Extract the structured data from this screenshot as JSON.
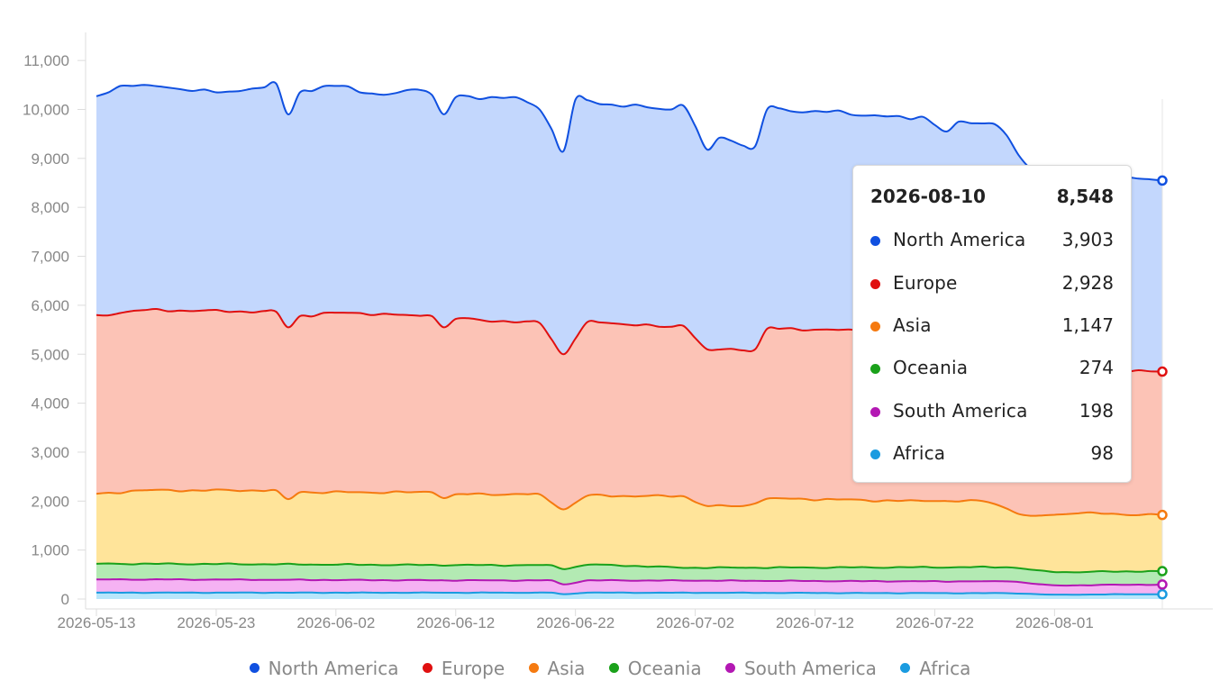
{
  "chart_data": {
    "type": "area",
    "stacked": true,
    "title": "",
    "xlabel": "",
    "ylabel": "",
    "ylim": [
      0,
      11500
    ],
    "y_ticks": [
      0,
      1000,
      2000,
      3000,
      4000,
      5000,
      6000,
      7000,
      8000,
      9000,
      10000,
      11000
    ],
    "y_tick_labels": [
      "0",
      "1,000",
      "2,000",
      "3,000",
      "4,000",
      "5,000",
      "6,000",
      "7,000",
      "8,000",
      "9,000",
      "10,000",
      "11,000"
    ],
    "x_tick_labels": [
      "2026-05-13",
      "2026-05-23",
      "2026-06-02",
      "2026-06-12",
      "2026-06-22",
      "2026-07-02",
      "2026-07-12",
      "2026-07-22",
      "2026-08-01"
    ],
    "x_start": "2026-05-13",
    "x_end": "2026-08-10",
    "legend_position": "bottom",
    "grid": false,
    "stack_series": [
      {
        "name": "Africa",
        "color": "#1a9be0",
        "fill": "#b8e6fb",
        "keypoints": [
          [
            "2026-05-13",
            130
          ],
          [
            "2026-06-20",
            130
          ],
          [
            "2026-06-21",
            100
          ],
          [
            "2026-06-23",
            130
          ],
          [
            "2026-07-28",
            120
          ],
          [
            "2026-08-01",
            90
          ],
          [
            "2026-08-10",
            98
          ]
        ]
      },
      {
        "name": "South America",
        "color": "#b318b3",
        "fill": "#f5b2f3",
        "keypoints": [
          [
            "2026-05-13",
            400
          ],
          [
            "2026-06-20",
            380
          ],
          [
            "2026-06-21",
            300
          ],
          [
            "2026-06-23",
            380
          ],
          [
            "2026-07-28",
            360
          ],
          [
            "2026-08-01",
            280
          ],
          [
            "2026-08-10",
            296
          ]
        ]
      },
      {
        "name": "Oceania",
        "color": "#1aa11a",
        "fill": "#b3eab3",
        "keypoints": [
          [
            "2026-05-13",
            720
          ],
          [
            "2026-06-20",
            690
          ],
          [
            "2026-06-21",
            610
          ],
          [
            "2026-06-23",
            700
          ],
          [
            "2026-07-02",
            640
          ],
          [
            "2026-07-28",
            650
          ],
          [
            "2026-08-01",
            550
          ],
          [
            "2026-08-10",
            570
          ]
        ]
      },
      {
        "name": "Asia",
        "color": "#f57a10",
        "fill": "#ffe49a",
        "keypoints": [
          [
            "2026-05-13",
            2150
          ],
          [
            "2026-05-17",
            2220
          ],
          [
            "2026-05-28",
            2220
          ],
          [
            "2026-05-29",
            2040
          ],
          [
            "2026-05-30",
            2180
          ],
          [
            "2026-06-10",
            2180
          ],
          [
            "2026-06-11",
            2060
          ],
          [
            "2026-06-12",
            2140
          ],
          [
            "2026-06-19",
            2140
          ],
          [
            "2026-06-21",
            1830
          ],
          [
            "2026-06-23",
            2110
          ],
          [
            "2026-07-01",
            2100
          ],
          [
            "2026-07-03",
            1900
          ],
          [
            "2026-07-06",
            1900
          ],
          [
            "2026-07-08",
            2050
          ],
          [
            "2026-07-22",
            2000
          ],
          [
            "2026-07-26",
            2000
          ],
          [
            "2026-07-30",
            1700
          ],
          [
            "2026-08-03",
            1750
          ],
          [
            "2026-08-10",
            1717
          ]
        ]
      },
      {
        "name": "Europe",
        "color": "#e01010",
        "fill": "#fcc3b6",
        "keypoints": [
          [
            "2026-05-13",
            5800
          ],
          [
            "2026-05-17",
            5900
          ],
          [
            "2026-05-28",
            5870
          ],
          [
            "2026-05-29",
            5550
          ],
          [
            "2026-05-30",
            5780
          ],
          [
            "2026-06-02",
            5850
          ],
          [
            "2026-06-10",
            5780
          ],
          [
            "2026-06-11",
            5550
          ],
          [
            "2026-06-12",
            5720
          ],
          [
            "2026-06-19",
            5640
          ],
          [
            "2026-06-21",
            5000
          ],
          [
            "2026-06-23",
            5660
          ],
          [
            "2026-06-30",
            5560
          ],
          [
            "2026-07-01",
            5580
          ],
          [
            "2026-07-03",
            5100
          ],
          [
            "2026-07-07",
            5100
          ],
          [
            "2026-07-08",
            5520
          ],
          [
            "2026-07-22",
            5450
          ],
          [
            "2026-07-26",
            5100
          ],
          [
            "2026-07-30",
            4800
          ],
          [
            "2026-08-03",
            4700
          ],
          [
            "2026-08-10",
            4645
          ]
        ]
      },
      {
        "name": "North America",
        "color": "#1050e0",
        "fill": "#c3d7fd",
        "keypoints": [
          [
            "2026-05-13",
            10270
          ],
          [
            "2026-05-15",
            10480
          ],
          [
            "2026-05-17",
            10500
          ],
          [
            "2026-05-23",
            10350
          ],
          [
            "2026-05-27",
            10450
          ],
          [
            "2026-05-28",
            10530
          ],
          [
            "2026-05-29",
            9900
          ],
          [
            "2026-05-30",
            10350
          ],
          [
            "2026-06-02",
            10480
          ],
          [
            "2026-06-06",
            10300
          ],
          [
            "2026-06-09",
            10400
          ],
          [
            "2026-06-10",
            10300
          ],
          [
            "2026-06-11",
            9900
          ],
          [
            "2026-06-12",
            10250
          ],
          [
            "2026-06-17",
            10250
          ],
          [
            "2026-06-19",
            10000
          ],
          [
            "2026-06-20",
            9600
          ],
          [
            "2026-06-21",
            9150
          ],
          [
            "2026-06-22",
            10200
          ],
          [
            "2026-06-25",
            10100
          ],
          [
            "2026-06-30",
            10000
          ],
          [
            "2026-07-01",
            10080
          ],
          [
            "2026-07-03",
            9180
          ],
          [
            "2026-07-04",
            9420
          ],
          [
            "2026-07-07",
            9250
          ],
          [
            "2026-07-08",
            10000
          ],
          [
            "2026-07-13",
            9950
          ],
          [
            "2026-07-17",
            9880
          ],
          [
            "2026-07-20",
            9800
          ],
          [
            "2026-07-21",
            9850
          ],
          [
            "2026-07-23",
            9550
          ],
          [
            "2026-07-24",
            9750
          ],
          [
            "2026-07-27",
            9700
          ],
          [
            "2026-07-30",
            8800
          ],
          [
            "2026-08-03",
            8700
          ],
          [
            "2026-08-10",
            8548
          ]
        ]
      }
    ],
    "tooltip": {
      "date": "2026-08-10",
      "total": "8,548",
      "rows": [
        {
          "name": "North America",
          "value": "3,903",
          "color": "#1050e0"
        },
        {
          "name": "Europe",
          "value": "2,928",
          "color": "#e01010"
        },
        {
          "name": "Asia",
          "value": "1,147",
          "color": "#f57a10"
        },
        {
          "name": "Oceania",
          "value": "274",
          "color": "#1aa11a"
        },
        {
          "name": "South America",
          "value": "198",
          "color": "#b318b3"
        },
        {
          "name": "Africa",
          "value": "98",
          "color": "#1a9be0"
        }
      ]
    },
    "legend": [
      {
        "name": "North America",
        "color": "#1050e0"
      },
      {
        "name": "Europe",
        "color": "#e01010"
      },
      {
        "name": "Asia",
        "color": "#f57a10"
      },
      {
        "name": "Oceania",
        "color": "#1aa11a"
      },
      {
        "name": "South America",
        "color": "#b318b3"
      },
      {
        "name": "Africa",
        "color": "#1a9be0"
      }
    ]
  }
}
